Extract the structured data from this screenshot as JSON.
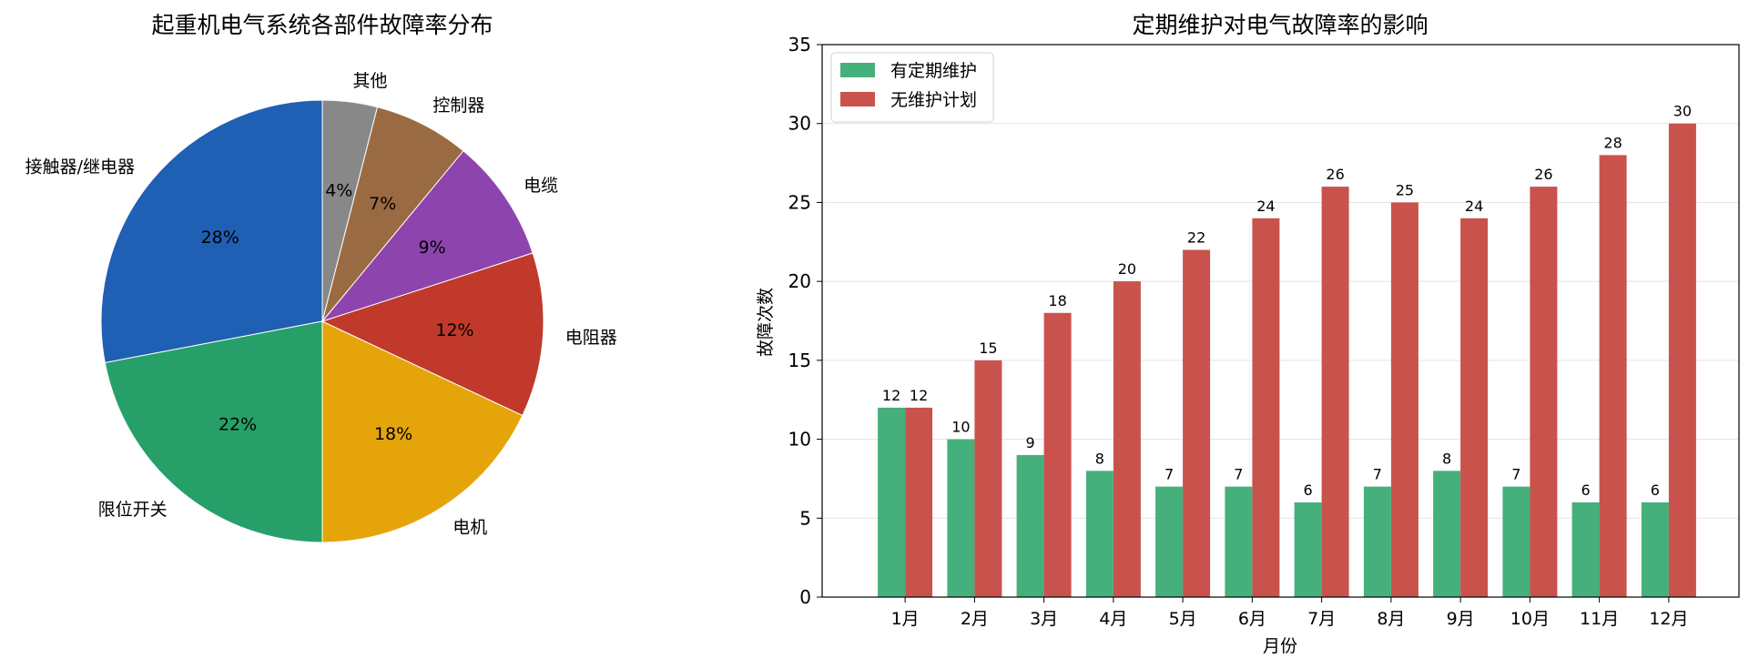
{
  "chart_data": [
    {
      "type": "pie",
      "title": "起重机电气系统各部件故障率分布",
      "labels": [
        "接触器/继电器",
        "限位开关",
        "电机",
        "电阻器",
        "电缆",
        "控制器",
        "其他"
      ],
      "values": [
        28,
        22,
        18,
        12,
        9,
        7,
        4
      ],
      "value_labels": [
        "28%",
        "22%",
        "18%",
        "12%",
        "9%",
        "7%",
        "4%"
      ],
      "colors": [
        "#1f5fb4",
        "#26a068",
        "#e5a50a",
        "#c0392b",
        "#8e44ad",
        "#9a6b42",
        "#888888"
      ],
      "start": "12 o'clock",
      "direction": "counterclockwise"
    },
    {
      "type": "bar",
      "title": "定期维护对电气故障率的影响",
      "xlabel": "月份",
      "ylabel": "故障次数",
      "categories": [
        "1月",
        "2月",
        "3月",
        "4月",
        "5月",
        "6月",
        "7月",
        "8月",
        "9月",
        "10月",
        "11月",
        "12月"
      ],
      "series": [
        {
          "name": "有定期维护",
          "color": "#45b07c",
          "values": [
            12,
            10,
            9,
            8,
            7,
            7,
            6,
            7,
            8,
            7,
            6,
            6
          ]
        },
        {
          "name": "无维护计划",
          "color": "#c9534c",
          "values": [
            12,
            15,
            18,
            20,
            22,
            24,
            26,
            25,
            24,
            26,
            28,
            30
          ]
        }
      ],
      "ylim": [
        0,
        35
      ],
      "yticks": [
        0,
        5,
        10,
        15,
        20,
        25,
        30,
        35
      ],
      "grid": "horizontal",
      "legend": "top-left"
    }
  ]
}
